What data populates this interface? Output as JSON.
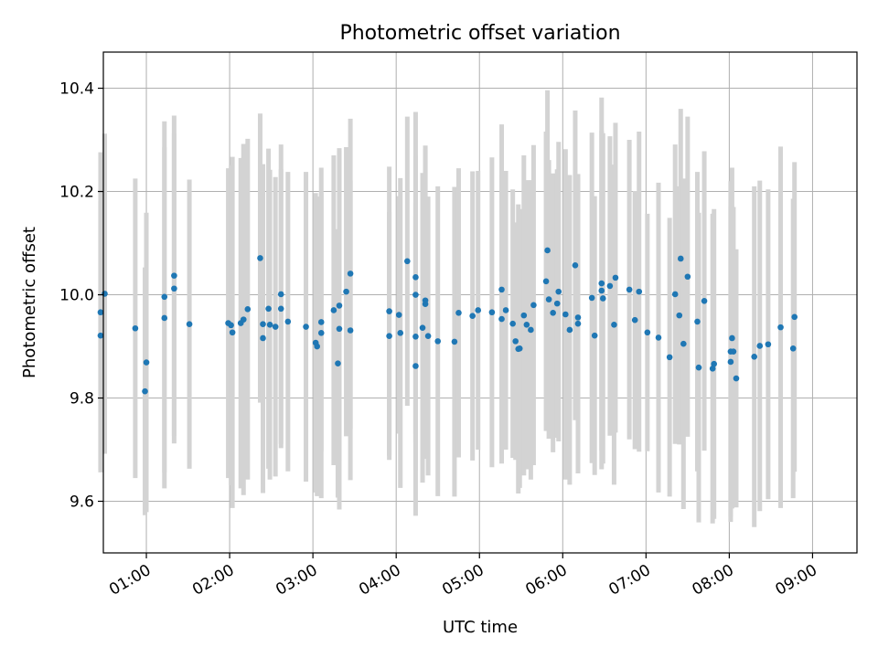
{
  "chart_data": {
    "type": "scatter",
    "title": "Photometric offset variation",
    "xlabel": "UTC time",
    "ylabel": "Photometric offset",
    "x_unit": "hours UTC",
    "xlim": [
      "00:29",
      "09:32"
    ],
    "ylim": [
      9.5,
      10.47
    ],
    "x_ticks": [
      "01:00",
      "02:00",
      "03:00",
      "04:00",
      "05:00",
      "06:00",
      "07:00",
      "08:00",
      "09:00"
    ],
    "y_ticks": [
      "9.6",
      "9.8",
      "10.0",
      "10.2",
      "10.4"
    ],
    "grid": true,
    "legend": "none",
    "marker_color": "#1f77b4",
    "errorbar_color": "#d3d3d3",
    "points": [
      {
        "x": "00:27",
        "y": 9.966,
        "err": 0.31
      },
      {
        "x": "00:27",
        "y": 9.921,
        "err": 0.26
      },
      {
        "x": "00:30",
        "y": 10.002,
        "err": 0.31
      },
      {
        "x": "00:52",
        "y": 9.935,
        "err": 0.29
      },
      {
        "x": "00:59",
        "y": 9.813,
        "err": 0.24
      },
      {
        "x": "01:00",
        "y": 9.869,
        "err": 0.29
      },
      {
        "x": "01:13",
        "y": 9.996,
        "err": 0.34
      },
      {
        "x": "01:13",
        "y": 9.955,
        "err": 0.33
      },
      {
        "x": "01:20",
        "y": 10.037,
        "err": 0.31
      },
      {
        "x": "01:20",
        "y": 10.012,
        "err": 0.3
      },
      {
        "x": "01:31",
        "y": 9.943,
        "err": 0.28
      },
      {
        "x": "01:59",
        "y": 9.945,
        "err": 0.3
      },
      {
        "x": "02:01",
        "y": 9.941,
        "err": 0.31
      },
      {
        "x": "02:02",
        "y": 9.927,
        "err": 0.34
      },
      {
        "x": "02:08",
        "y": 9.945,
        "err": 0.32
      },
      {
        "x": "02:10",
        "y": 9.952,
        "err": 0.34
      },
      {
        "x": "02:13",
        "y": 9.972,
        "err": 0.33
      },
      {
        "x": "02:22",
        "y": 10.071,
        "err": 0.28
      },
      {
        "x": "02:24",
        "y": 9.943,
        "err": 0.31
      },
      {
        "x": "02:24",
        "y": 9.916,
        "err": 0.3
      },
      {
        "x": "02:28",
        "y": 9.973,
        "err": 0.31
      },
      {
        "x": "02:29",
        "y": 9.942,
        "err": 0.3
      },
      {
        "x": "02:33",
        "y": 9.938,
        "err": 0.29
      },
      {
        "x": "02:37",
        "y": 10.001,
        "err": 0.29
      },
      {
        "x": "02:37",
        "y": 9.973,
        "err": 0.27
      },
      {
        "x": "02:42",
        "y": 9.948,
        "err": 0.29
      },
      {
        "x": "02:55",
        "y": 9.938,
        "err": 0.3
      },
      {
        "x": "03:02",
        "y": 9.907,
        "err": 0.29
      },
      {
        "x": "03:03",
        "y": 9.9,
        "err": 0.29
      },
      {
        "x": "03:06",
        "y": 9.947,
        "err": 0.25
      },
      {
        "x": "03:06",
        "y": 9.926,
        "err": 0.32
      },
      {
        "x": "03:15",
        "y": 9.97,
        "err": 0.3
      },
      {
        "x": "03:18",
        "y": 9.867,
        "err": 0.26
      },
      {
        "x": "03:19",
        "y": 9.979,
        "err": 0.3
      },
      {
        "x": "03:19",
        "y": 9.934,
        "err": 0.35
      },
      {
        "x": "03:24",
        "y": 10.006,
        "err": 0.28
      },
      {
        "x": "03:27",
        "y": 10.041,
        "err": 0.3
      },
      {
        "x": "03:27",
        "y": 9.931,
        "err": 0.29
      },
      {
        "x": "03:55",
        "y": 9.968,
        "err": 0.28
      },
      {
        "x": "03:55",
        "y": 9.92,
        "err": 0.24
      },
      {
        "x": "04:02",
        "y": 9.961,
        "err": 0.23
      },
      {
        "x": "04:03",
        "y": 9.926,
        "err": 0.3
      },
      {
        "x": "04:08",
        "y": 10.065,
        "err": 0.28
      },
      {
        "x": "04:14",
        "y": 10.034,
        "err": 0.32
      },
      {
        "x": "04:14",
        "y": 10.0,
        "err": 0.27
      },
      {
        "x": "04:14",
        "y": 9.919,
        "err": 0.26
      },
      {
        "x": "04:14",
        "y": 9.862,
        "err": 0.29
      },
      {
        "x": "04:19",
        "y": 9.936,
        "err": 0.3
      },
      {
        "x": "04:21",
        "y": 9.982,
        "err": 0.3
      },
      {
        "x": "04:21",
        "y": 9.989,
        "err": 0.3
      },
      {
        "x": "04:23",
        "y": 9.92,
        "err": 0.27
      },
      {
        "x": "04:30",
        "y": 9.91,
        "err": 0.3
      },
      {
        "x": "04:42",
        "y": 9.909,
        "err": 0.3
      },
      {
        "x": "04:45",
        "y": 9.965,
        "err": 0.28
      },
      {
        "x": "04:55",
        "y": 9.959,
        "err": 0.28
      },
      {
        "x": "04:59",
        "y": 9.97,
        "err": 0.27
      },
      {
        "x": "05:09",
        "y": 9.966,
        "err": 0.3
      },
      {
        "x": "05:16",
        "y": 10.01,
        "err": 0.32
      },
      {
        "x": "05:16",
        "y": 9.953,
        "err": 0.28
      },
      {
        "x": "05:19",
        "y": 9.97,
        "err": 0.27
      },
      {
        "x": "05:24",
        "y": 9.944,
        "err": 0.26
      },
      {
        "x": "05:26",
        "y": 9.91,
        "err": 0.23
      },
      {
        "x": "05:28",
        "y": 9.895,
        "err": 0.28
      },
      {
        "x": "05:29",
        "y": 9.896,
        "err": 0.27
      },
      {
        "x": "05:32",
        "y": 9.96,
        "err": 0.31
      },
      {
        "x": "05:34",
        "y": 9.942,
        "err": 0.28
      },
      {
        "x": "05:37",
        "y": 9.932,
        "err": 0.29
      },
      {
        "x": "05:39",
        "y": 9.98,
        "err": 0.31
      },
      {
        "x": "05:48",
        "y": 10.026,
        "err": 0.29
      },
      {
        "x": "05:49",
        "y": 10.086,
        "err": 0.31
      },
      {
        "x": "05:50",
        "y": 9.991,
        "err": 0.27
      },
      {
        "x": "05:53",
        "y": 9.965,
        "err": 0.27
      },
      {
        "x": "05:56",
        "y": 9.983,
        "err": 0.26
      },
      {
        "x": "05:57",
        "y": 10.006,
        "err": 0.29
      },
      {
        "x": "06:02",
        "y": 9.962,
        "err": 0.32
      },
      {
        "x": "06:05",
        "y": 9.932,
        "err": 0.3
      },
      {
        "x": "06:09",
        "y": 10.057,
        "err": 0.3
      },
      {
        "x": "06:11",
        "y": 9.956,
        "err": 0.27
      },
      {
        "x": "06:11",
        "y": 9.944,
        "err": 0.29
      },
      {
        "x": "06:21",
        "y": 9.994,
        "err": 0.32
      },
      {
        "x": "06:23",
        "y": 9.921,
        "err": 0.27
      },
      {
        "x": "06:28",
        "y": 10.022,
        "err": 0.36
      },
      {
        "x": "06:28",
        "y": 10.008,
        "err": 0.31
      },
      {
        "x": "06:29",
        "y": 9.993,
        "err": 0.32
      },
      {
        "x": "06:34",
        "y": 10.017,
        "err": 0.29
      },
      {
        "x": "06:37",
        "y": 9.942,
        "err": 0.31
      },
      {
        "x": "06:38",
        "y": 10.033,
        "err": 0.3
      },
      {
        "x": "06:48",
        "y": 10.01,
        "err": 0.29
      },
      {
        "x": "06:52",
        "y": 9.951,
        "err": 0.25
      },
      {
        "x": "06:55",
        "y": 10.006,
        "err": 0.31
      },
      {
        "x": "07:01",
        "y": 9.927,
        "err": 0.23
      },
      {
        "x": "07:09",
        "y": 9.917,
        "err": 0.3
      },
      {
        "x": "07:17",
        "y": 9.879,
        "err": 0.27
      },
      {
        "x": "07:21",
        "y": 10.001,
        "err": 0.29
      },
      {
        "x": "07:24",
        "y": 9.96,
        "err": 0.25
      },
      {
        "x": "07:25",
        "y": 10.07,
        "err": 0.29
      },
      {
        "x": "07:27",
        "y": 9.905,
        "err": 0.32
      },
      {
        "x": "07:30",
        "y": 10.035,
        "err": 0.31
      },
      {
        "x": "07:37",
        "y": 9.948,
        "err": 0.29
      },
      {
        "x": "07:38",
        "y": 9.859,
        "err": 0.3
      },
      {
        "x": "07:42",
        "y": 9.988,
        "err": 0.29
      },
      {
        "x": "07:48",
        "y": 9.857,
        "err": 0.3
      },
      {
        "x": "07:49",
        "y": 9.866,
        "err": 0.3
      },
      {
        "x": "08:01",
        "y": 9.87,
        "err": 0.3
      },
      {
        "x": "08:01",
        "y": 9.89,
        "err": 0.33
      },
      {
        "x": "08:02",
        "y": 9.916,
        "err": 0.33
      },
      {
        "x": "08:03",
        "y": 9.89,
        "err": 0.28
      },
      {
        "x": "08:05",
        "y": 9.838,
        "err": 0.25
      },
      {
        "x": "08:18",
        "y": 9.88,
        "err": 0.33
      },
      {
        "x": "08:22",
        "y": 9.901,
        "err": 0.32
      },
      {
        "x": "08:28",
        "y": 9.904,
        "err": 0.3
      },
      {
        "x": "08:37",
        "y": 9.937,
        "err": 0.35
      },
      {
        "x": "08:46",
        "y": 9.896,
        "err": 0.29
      },
      {
        "x": "08:47",
        "y": 9.957,
        "err": 0.3
      }
    ]
  }
}
